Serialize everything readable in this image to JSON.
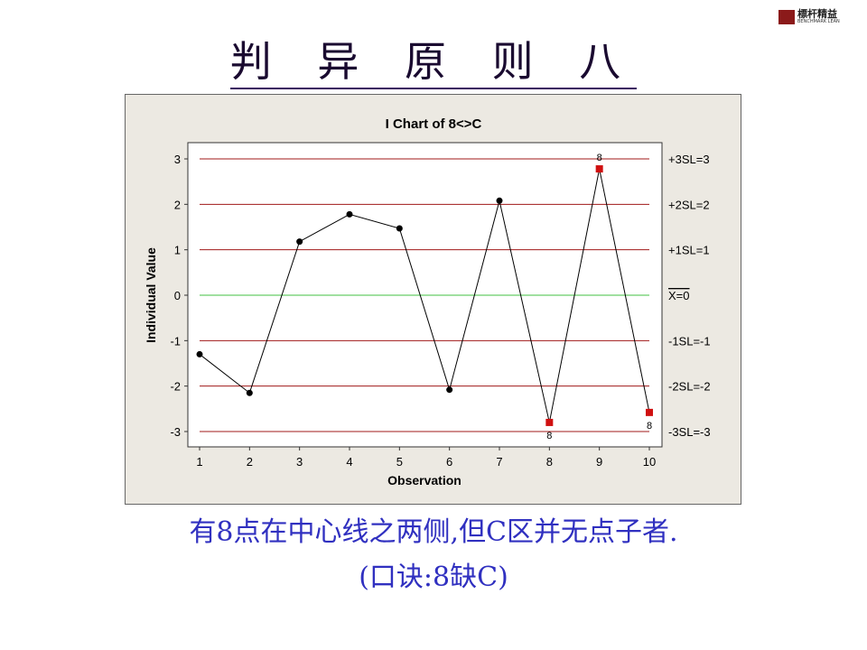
{
  "slide_title": "判 异 原 则 八",
  "logo": {
    "text": "標杆精益",
    "subtext": "BENCHMARK LEAN"
  },
  "caption_line1": "有8点在中心线之两侧,但C区并无点子者.",
  "caption_line2": "(口诀:8缺C)",
  "chart_data": {
    "type": "line",
    "title": "I Chart of 8<>C",
    "xlabel": "Observation",
    "ylabel": "Individual Value",
    "x": [
      1,
      2,
      3,
      4,
      5,
      6,
      7,
      8,
      9,
      10
    ],
    "values": [
      -1.3,
      -2.15,
      1.18,
      1.78,
      1.47,
      -2.08,
      2.08,
      -2.8,
      2.78,
      -2.58
    ],
    "flagged": [
      {
        "x": 8,
        "label": "8"
      },
      {
        "x": 9,
        "label": "8"
      },
      {
        "x": 10,
        "label": "8"
      }
    ],
    "ylim": [
      -3.35,
      3.35
    ],
    "xlim": [
      0.75,
      10.25
    ],
    "yticks": [
      3,
      2,
      1,
      0,
      -1,
      -2,
      -3
    ],
    "xticks": [
      1,
      2,
      3,
      4,
      5,
      6,
      7,
      8,
      9,
      10
    ],
    "reference_lines": [
      {
        "value": 3,
        "label": "+3SL=3"
      },
      {
        "value": 2,
        "label": "+2SL=2"
      },
      {
        "value": 1,
        "label": "+1SL=1"
      },
      {
        "value": 0,
        "label": "X=0",
        "center": true
      },
      {
        "value": -1,
        "label": "-1SL=-1"
      },
      {
        "value": -2,
        "label": "-2SL=-2"
      },
      {
        "value": -3,
        "label": "-3SL=-3"
      }
    ],
    "colors": {
      "limit": "#a01818",
      "center": "#40c040",
      "point": "#000000",
      "flagged": "#d01010",
      "background": "#ece9e2"
    }
  }
}
